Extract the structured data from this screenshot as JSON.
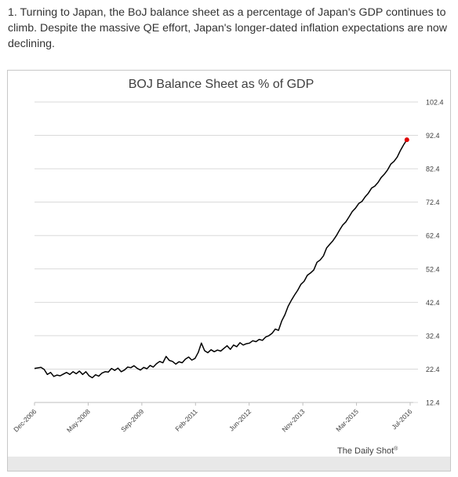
{
  "article": {
    "intro_text": "1. Turning to Japan, the BoJ balance sheet as a percentage of Japan's GDP continues to climb. Despite the massive QE effort, Japan's longer-dated inflation expectations are now declining."
  },
  "chart_data": {
    "type": "line",
    "title": "BOJ Balance Sheet as % of GDP",
    "xlabel": "",
    "ylabel": "",
    "x_tick_labels": [
      "Dec-2006",
      "May-2008",
      "Sep-2009",
      "Feb-2011",
      "Jun-2012",
      "Nov-2013",
      "Mar-2015",
      "Jul-2016"
    ],
    "y_ticks": [
      12.4,
      22.4,
      32.4,
      42.4,
      52.4,
      62.4,
      72.4,
      82.4,
      92.4,
      102.4
    ],
    "y_tick_labels": [
      "12.4",
      "22.4",
      "32.4",
      "42.4",
      "52.4",
      "62.4",
      "72.4",
      "82.4",
      "92.4",
      "102.4"
    ],
    "ylim": [
      12.4,
      102.4
    ],
    "xlim": [
      "2006-12",
      "2016-10"
    ],
    "y_axis_side": "right",
    "grid": "horizontal",
    "series": [
      {
        "color": "#000000",
        "last_point_color": "#e00000",
        "points": [
          [
            "2006-12",
            22.6
          ],
          [
            "2007-02",
            22.9
          ],
          [
            "2007-03",
            22.3
          ],
          [
            "2007-04",
            20.8
          ],
          [
            "2007-05",
            21.4
          ],
          [
            "2007-06",
            20.2
          ],
          [
            "2007-07",
            20.6
          ],
          [
            "2007-08",
            20.4
          ],
          [
            "2007-09",
            20.9
          ],
          [
            "2007-10",
            21.4
          ],
          [
            "2007-11",
            20.8
          ],
          [
            "2007-12",
            21.6
          ],
          [
            "2008-01",
            21.0
          ],
          [
            "2008-02",
            21.8
          ],
          [
            "2008-03",
            20.8
          ],
          [
            "2008-04",
            21.6
          ],
          [
            "2008-05",
            20.4
          ],
          [
            "2008-06",
            19.8
          ],
          [
            "2008-07",
            20.7
          ],
          [
            "2008-08",
            20.3
          ],
          [
            "2008-09",
            21.2
          ],
          [
            "2008-10",
            21.6
          ],
          [
            "2008-11",
            21.5
          ],
          [
            "2008-12",
            22.6
          ],
          [
            "2009-01",
            22.0
          ],
          [
            "2009-02",
            22.7
          ],
          [
            "2009-03",
            21.6
          ],
          [
            "2009-04",
            22.1
          ],
          [
            "2009-05",
            23.0
          ],
          [
            "2009-06",
            22.8
          ],
          [
            "2009-07",
            23.4
          ],
          [
            "2009-08",
            22.6
          ],
          [
            "2009-09",
            22.1
          ],
          [
            "2009-10",
            22.9
          ],
          [
            "2009-11",
            22.5
          ],
          [
            "2009-12",
            23.5
          ],
          [
            "2010-01",
            23.0
          ],
          [
            "2010-02",
            24.0
          ],
          [
            "2010-03",
            24.7
          ],
          [
            "2010-04",
            24.3
          ],
          [
            "2010-05",
            26.2
          ],
          [
            "2010-06",
            25.0
          ],
          [
            "2010-07",
            24.7
          ],
          [
            "2010-08",
            23.9
          ],
          [
            "2010-09",
            24.6
          ],
          [
            "2010-10",
            24.3
          ],
          [
            "2010-11",
            25.4
          ],
          [
            "2010-12",
            26.0
          ],
          [
            "2011-01",
            25.1
          ],
          [
            "2011-02",
            25.6
          ],
          [
            "2011-03",
            27.4
          ],
          [
            "2011-04",
            30.2
          ],
          [
            "2011-05",
            27.9
          ],
          [
            "2011-06",
            27.3
          ],
          [
            "2011-07",
            28.2
          ],
          [
            "2011-08",
            27.6
          ],
          [
            "2011-09",
            28.1
          ],
          [
            "2011-10",
            27.8
          ],
          [
            "2011-11",
            28.6
          ],
          [
            "2011-12",
            29.4
          ],
          [
            "2012-01",
            28.3
          ],
          [
            "2012-02",
            29.6
          ],
          [
            "2012-03",
            29.1
          ],
          [
            "2012-04",
            30.3
          ],
          [
            "2012-05",
            29.6
          ],
          [
            "2012-06",
            30.0
          ],
          [
            "2012-07",
            30.2
          ],
          [
            "2012-08",
            30.9
          ],
          [
            "2012-09",
            30.6
          ],
          [
            "2012-10",
            31.3
          ],
          [
            "2012-11",
            31.0
          ],
          [
            "2012-12",
            32.0
          ],
          [
            "2013-01",
            32.4
          ],
          [
            "2013-02",
            33.1
          ],
          [
            "2013-03",
            34.4
          ],
          [
            "2013-04",
            34.0
          ],
          [
            "2013-05",
            36.8
          ],
          [
            "2013-06",
            38.7
          ],
          [
            "2013-07",
            41.2
          ],
          [
            "2013-08",
            43.0
          ],
          [
            "2013-09",
            44.6
          ],
          [
            "2013-10",
            46.0
          ],
          [
            "2013-11",
            47.8
          ],
          [
            "2013-12",
            48.7
          ],
          [
            "2014-01",
            50.5
          ],
          [
            "2014-02",
            51.2
          ],
          [
            "2014-03",
            52.1
          ],
          [
            "2014-04",
            54.4
          ],
          [
            "2014-05",
            55.1
          ],
          [
            "2014-06",
            56.3
          ],
          [
            "2014-07",
            58.7
          ],
          [
            "2014-08",
            59.8
          ],
          [
            "2014-09",
            60.9
          ],
          [
            "2014-10",
            62.3
          ],
          [
            "2014-11",
            64.0
          ],
          [
            "2014-12",
            65.5
          ],
          [
            "2015-01",
            66.5
          ],
          [
            "2015-02",
            68.0
          ],
          [
            "2015-03",
            69.6
          ],
          [
            "2015-04",
            70.6
          ],
          [
            "2015-05",
            72.0
          ],
          [
            "2015-06",
            72.6
          ],
          [
            "2015-07",
            74.0
          ],
          [
            "2015-08",
            75.1
          ],
          [
            "2015-09",
            76.6
          ],
          [
            "2015-10",
            77.2
          ],
          [
            "2015-11",
            78.3
          ],
          [
            "2015-12",
            79.8
          ],
          [
            "2016-01",
            80.8
          ],
          [
            "2016-02",
            82.1
          ],
          [
            "2016-03",
            83.8
          ],
          [
            "2016-04",
            84.6
          ],
          [
            "2016-05",
            85.9
          ],
          [
            "2016-06",
            87.9
          ],
          [
            "2016-07",
            89.6
          ],
          [
            "2016-08",
            91.1
          ]
        ]
      }
    ],
    "watermark": "The Daily Shot",
    "watermark_mark": "®"
  }
}
